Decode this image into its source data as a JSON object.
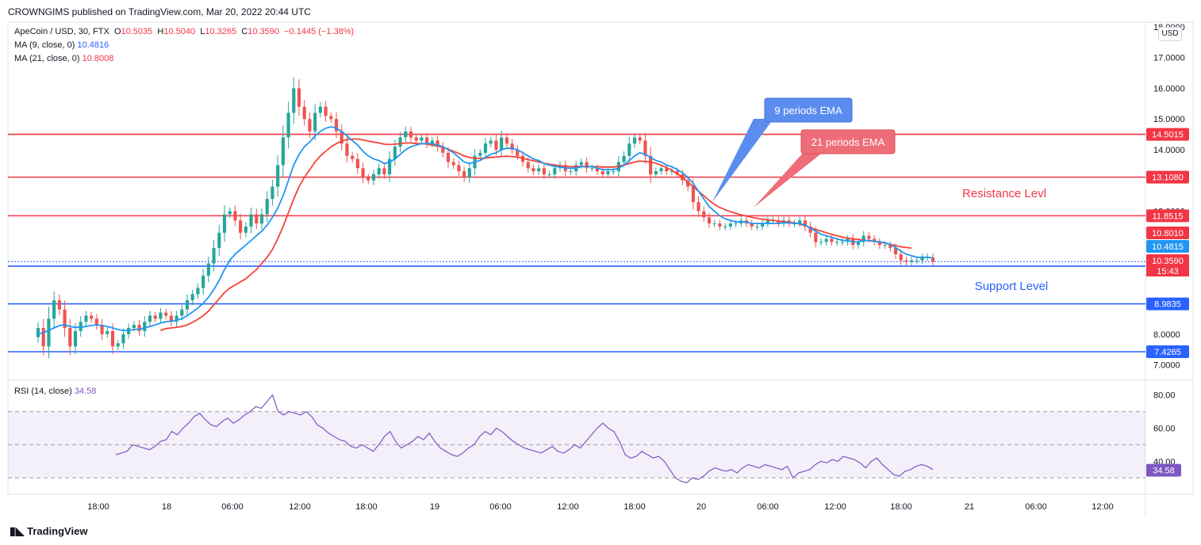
{
  "header": {
    "published": "CROWNGIMS published on TradingView.com, Mar 20, 2022 20:44 UTC"
  },
  "legend": {
    "symbol": "ApeCoin / USD, 30, FTX",
    "o_label": "O",
    "o": "10.5035",
    "h_label": "H",
    "h": "10.5040",
    "l_label": "L",
    "l": "10.3265",
    "c_label": "C",
    "c": "10.3590",
    "change": "−0.1445 (−1.38%)",
    "ma9_label": "MA (9, close, 0)",
    "ma9_value": "10.4816",
    "ma21_label": "MA (21, close, 0)",
    "ma21_value": "10.8008",
    "rsi_label": "RSI (14, close)",
    "rsi_value": "34.58"
  },
  "currency_button": "USD",
  "footer": {
    "brand": "TradingView"
  },
  "annotations": {
    "ema9": "9 periods EMA",
    "ema21": "21 periods EMA",
    "resistance": "Resistance Levl",
    "support": "Support Level"
  },
  "colors": {
    "up": "#26a69a",
    "down": "#ef5350",
    "ema9": "#2196f3",
    "ema21": "#f44336",
    "resistance": "#f23645",
    "support": "#2962ff",
    "rsi": "#7e57c2"
  },
  "chart_data": {
    "type": "candlestick",
    "y_range": [
      6.55,
      18.1
    ],
    "y_ticks": [
      "7.0000",
      "8.0000",
      "12.0000",
      "14.0000",
      "15.0000",
      "16.0000",
      "17.0000",
      "18.0000"
    ],
    "x_ticks": [
      "18:00",
      "18",
      "06:00",
      "12:00",
      "18:00",
      "19",
      "06:00",
      "12:00",
      "18:00",
      "20",
      "06:00",
      "12:00",
      "18:00",
      "21",
      "06:00",
      "12:00"
    ],
    "horizontal_levels": [
      {
        "value": 14.5015,
        "label": "14.5015",
        "kind": "resistance"
      },
      {
        "value": 13.108,
        "label": "13.1080",
        "kind": "resistance"
      },
      {
        "value": 11.8515,
        "label": "11.8515",
        "kind": "resistance"
      },
      {
        "value": 10.213,
        "label": "10.2130",
        "kind": "support"
      },
      {
        "value": 8.9835,
        "label": "8.9835",
        "kind": "support"
      },
      {
        "value": 7.4265,
        "label": "7.4265",
        "kind": "support"
      }
    ],
    "price_tags": [
      {
        "value": 10.801,
        "label": "10.8010",
        "color": "#f23645"
      },
      {
        "value": 10.4815,
        "label": "10.4815",
        "color": "#2196f3"
      },
      {
        "value": 10.359,
        "label": "10.3590",
        "color": "#f23645",
        "countdown": "15:43"
      }
    ],
    "close": [
      8.2,
      7.6,
      8.5,
      9.1,
      8.8,
      8.2,
      7.6,
      8.1,
      8.4,
      8.6,
      8.5,
      8.3,
      8.0,
      8.1,
      7.6,
      7.7,
      8.0,
      8.2,
      8.3,
      8.1,
      8.4,
      8.6,
      8.5,
      8.7,
      8.6,
      8.4,
      8.6,
      8.8,
      9.1,
      9.3,
      9.5,
      9.9,
      10.3,
      10.8,
      11.3,
      11.9,
      12.0,
      11.7,
      11.3,
      11.5,
      11.9,
      11.6,
      11.9,
      12.4,
      12.8,
      13.5,
      14.4,
      15.2,
      16.0,
      15.4,
      15.0,
      14.6,
      15.2,
      15.4,
      15.1,
      15.0,
      14.6,
      14.2,
      13.8,
      13.7,
      13.4,
      13.1,
      13.0,
      13.2,
      13.4,
      13.2,
      13.7,
      14.1,
      14.4,
      14.6,
      14.4,
      14.3,
      14.4,
      14.2,
      14.3,
      14.1,
      13.9,
      13.6,
      13.5,
      13.3,
      13.1,
      13.4,
      13.8,
      13.9,
      14.2,
      14.3,
      14.0,
      14.4,
      14.2,
      14.0,
      13.8,
      13.6,
      13.4,
      13.3,
      13.4,
      13.2,
      13.2,
      13.4,
      13.5,
      13.3,
      13.3,
      13.5,
      13.6,
      13.4,
      13.4,
      13.3,
      13.2,
      13.3,
      13.3,
      13.6,
      13.8,
      14.2,
      14.4,
      14.3,
      13.8,
      13.2,
      13.3,
      13.4,
      13.3,
      13.3,
      13.2,
      13.0,
      12.8,
      12.3,
      12.0,
      11.8,
      11.6,
      11.6,
      11.5,
      11.5,
      11.6,
      11.6,
      11.7,
      11.6,
      11.5,
      11.5,
      11.6,
      11.7,
      11.7,
      11.6,
      11.7,
      11.6,
      11.6,
      11.7,
      11.5,
      11.3,
      11.0,
      11.0,
      11.1,
      11.0,
      11.0,
      11.0,
      11.1,
      10.9,
      11.0,
      11.2,
      11.1,
      11.0,
      10.9,
      10.9,
      10.8,
      10.6,
      10.4,
      10.35,
      10.4,
      10.4,
      10.5,
      10.5,
      10.36
    ],
    "ema9": [
      8.0,
      8.05,
      8.12,
      8.2,
      8.28,
      8.3,
      8.25,
      8.22,
      8.22,
      8.25,
      8.28,
      8.3,
      8.28,
      8.25,
      8.2,
      8.15,
      8.12,
      8.12,
      8.15,
      8.16,
      8.2,
      8.25,
      8.3,
      8.36,
      8.4,
      8.42,
      8.45,
      8.5,
      8.6,
      8.72,
      8.85,
      9.0,
      9.2,
      9.45,
      9.75,
      10.1,
      10.4,
      10.6,
      10.75,
      10.9,
      11.05,
      11.2,
      11.35,
      11.55,
      11.8,
      12.1,
      12.5,
      13.0,
      13.5,
      13.85,
      14.1,
      14.25,
      14.45,
      14.6,
      14.7,
      14.75,
      14.7,
      14.6,
      14.45,
      14.3,
      14.15,
      13.95,
      13.8,
      13.7,
      13.65,
      13.55,
      13.6,
      13.7,
      13.85,
      14.0,
      14.1,
      14.15,
      14.2,
      14.2,
      14.2,
      14.15,
      14.1,
      14.0,
      13.9,
      13.75,
      13.6,
      13.55,
      13.6,
      13.65,
      13.75,
      13.85,
      13.9,
      14.0,
      14.05,
      14.05,
      14.0,
      13.9,
      13.8,
      13.7,
      13.65,
      13.55,
      13.5,
      13.45,
      13.45,
      13.4,
      13.4,
      13.4,
      13.45,
      13.45,
      13.45,
      13.4,
      13.35,
      13.35,
      13.35,
      13.4,
      13.5,
      13.65,
      13.8,
      13.9,
      13.85,
      13.75,
      13.65,
      13.6,
      13.5,
      13.45,
      13.35,
      13.25,
      13.1,
      12.9,
      12.65,
      12.4,
      12.15,
      12.0,
      11.85,
      11.75,
      11.7,
      11.65,
      11.65,
      11.65,
      11.6,
      11.6,
      11.6,
      11.6,
      11.6,
      11.6,
      11.62,
      11.62,
      11.6,
      11.6,
      11.55,
      11.45,
      11.35,
      11.25,
      11.2,
      11.15,
      11.1,
      11.05,
      11.05,
      11.0,
      11.0,
      11.05,
      11.05,
      11.02,
      11.0,
      10.98,
      10.92,
      10.82,
      10.7,
      10.6,
      10.55,
      10.5,
      10.5,
      10.5,
      10.48
    ],
    "ema21": [
      null,
      null,
      null,
      null,
      null,
      null,
      null,
      null,
      null,
      null,
      null,
      null,
      null,
      null,
      null,
      null,
      null,
      null,
      null,
      null,
      null,
      null,
      null,
      8.12,
      8.18,
      8.2,
      8.22,
      8.25,
      8.3,
      8.38,
      8.48,
      8.6,
      8.75,
      8.95,
      9.15,
      9.35,
      9.5,
      9.6,
      9.7,
      9.8,
      9.95,
      10.1,
      10.3,
      10.5,
      10.75,
      11.1,
      11.5,
      11.95,
      12.4,
      12.8,
      13.1,
      13.35,
      13.6,
      13.8,
      13.95,
      14.1,
      14.2,
      14.28,
      14.33,
      14.35,
      14.35,
      14.32,
      14.28,
      14.25,
      14.22,
      14.18,
      14.17,
      14.18,
      14.2,
      14.22,
      14.22,
      14.2,
      14.2,
      14.18,
      14.15,
      14.12,
      14.08,
      14.02,
      13.95,
      13.88,
      13.8,
      13.75,
      13.72,
      13.72,
      13.73,
      13.75,
      13.76,
      13.78,
      13.79,
      13.78,
      13.76,
      13.72,
      13.68,
      13.64,
      13.6,
      13.56,
      13.53,
      13.5,
      13.48,
      13.46,
      13.45,
      13.45,
      13.46,
      13.46,
      13.45,
      13.45,
      13.44,
      13.44,
      13.44,
      13.46,
      13.5,
      13.55,
      13.6,
      13.63,
      13.62,
      13.6,
      13.56,
      13.5,
      13.42,
      13.33,
      13.22,
      13.1,
      12.95,
      12.8,
      12.65,
      12.5,
      12.35,
      12.22,
      12.12,
      12.05,
      11.98,
      11.93,
      11.88,
      11.84,
      11.8,
      11.77,
      11.74,
      11.72,
      11.7,
      11.68,
      11.66,
      11.64,
      11.62,
      11.58,
      11.53,
      11.47,
      11.4,
      11.35,
      11.3,
      11.25,
      11.2,
      11.16,
      11.12,
      11.1,
      11.08,
      11.06,
      11.04,
      11.02,
      11.0,
      10.96,
      10.92,
      10.88,
      10.84,
      10.82,
      10.8
    ],
    "rsi": {
      "y_range": [
        22,
        87
      ],
      "y_ticks": [
        "40.00",
        "60.00",
        "80.00"
      ],
      "overbought": 70,
      "mid": 50,
      "oversold": 30,
      "values": [
        44,
        45,
        46,
        50,
        49,
        48,
        47,
        49,
        52,
        53,
        58,
        56,
        60,
        63,
        67,
        69,
        65,
        62,
        61,
        64,
        66,
        63,
        65,
        68,
        70,
        73,
        72,
        76,
        80,
        70,
        68,
        70,
        69,
        68,
        70,
        67,
        62,
        60,
        57,
        55,
        53,
        52,
        49,
        48,
        50,
        48,
        46,
        50,
        55,
        58,
        52,
        48,
        50,
        52,
        55,
        53,
        57,
        52,
        48,
        46,
        44,
        43,
        45,
        48,
        50,
        55,
        58,
        56,
        60,
        58,
        55,
        52,
        50,
        48,
        47,
        46,
        45,
        47,
        49,
        46,
        45,
        47,
        50,
        48,
        52,
        56,
        60,
        63,
        60,
        58,
        52,
        44,
        42,
        43,
        46,
        44,
        42,
        43,
        40,
        35,
        30,
        28,
        27,
        30,
        29,
        31,
        34,
        36,
        35,
        34,
        35,
        33,
        36,
        38,
        37,
        36,
        38,
        37,
        36,
        35,
        37,
        30,
        33,
        34,
        35,
        38,
        40,
        39,
        41,
        40,
        43,
        42,
        41,
        39,
        36,
        40,
        42,
        38,
        35,
        32,
        31,
        34,
        35,
        37,
        38,
        37,
        35
      ]
    }
  }
}
